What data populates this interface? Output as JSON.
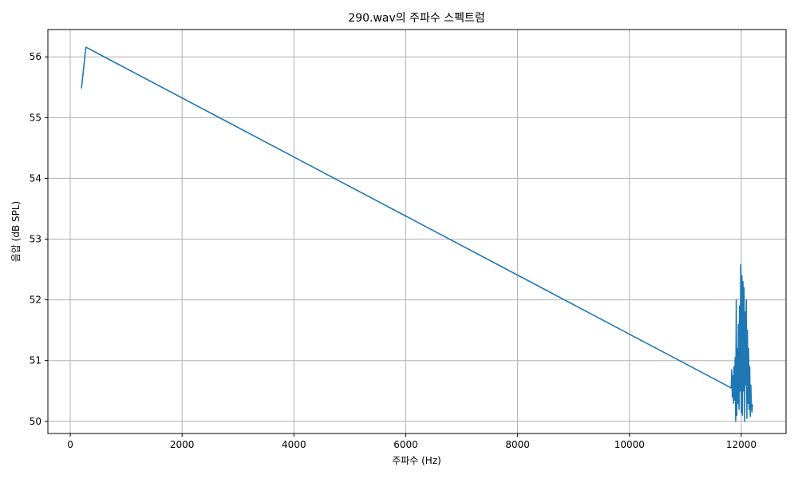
{
  "chart_data": {
    "type": "line",
    "title": "290.wav의 주파수 스펙트럼",
    "xlabel": "주파수 (Hz)",
    "ylabel": "음압 (dB SPL)",
    "xlim": [
      -400,
      12800
    ],
    "ylim": [
      49.8,
      56.45
    ],
    "xticks": [
      0,
      2000,
      4000,
      6000,
      8000,
      10000,
      12000
    ],
    "yticks": [
      50,
      51,
      52,
      53,
      54,
      55,
      56
    ],
    "grid": true,
    "color": "#1f77b4",
    "series": [
      {
        "x": [
          200,
          280,
          11820,
          11830,
          11840,
          11850,
          11860,
          11870,
          11880,
          11890,
          11900,
          11910,
          11920,
          11930,
          11940,
          11950,
          11960,
          11970,
          11980,
          11990,
          12000,
          12010,
          12020,
          12030,
          12040,
          12050,
          12060,
          12070,
          12080,
          12090,
          12100,
          12110,
          12120,
          12130,
          12140,
          12150,
          12160,
          12170,
          12180,
          12190,
          12200
        ],
        "y": [
          55.48,
          56.16,
          50.55,
          50.85,
          50.4,
          50.75,
          50.3,
          50.9,
          50.35,
          51.05,
          50.0,
          52.0,
          50.1,
          51.2,
          50.3,
          51.6,
          50.2,
          51.9,
          50.5,
          52.58,
          50.15,
          52.4,
          50.1,
          52.3,
          50.5,
          52.2,
          50.0,
          51.8,
          50.6,
          52.0,
          50.05,
          51.5,
          50.3,
          51.2,
          50.2,
          50.9,
          50.08,
          50.6,
          50.3,
          50.15,
          50.28
        ]
      }
    ]
  }
}
